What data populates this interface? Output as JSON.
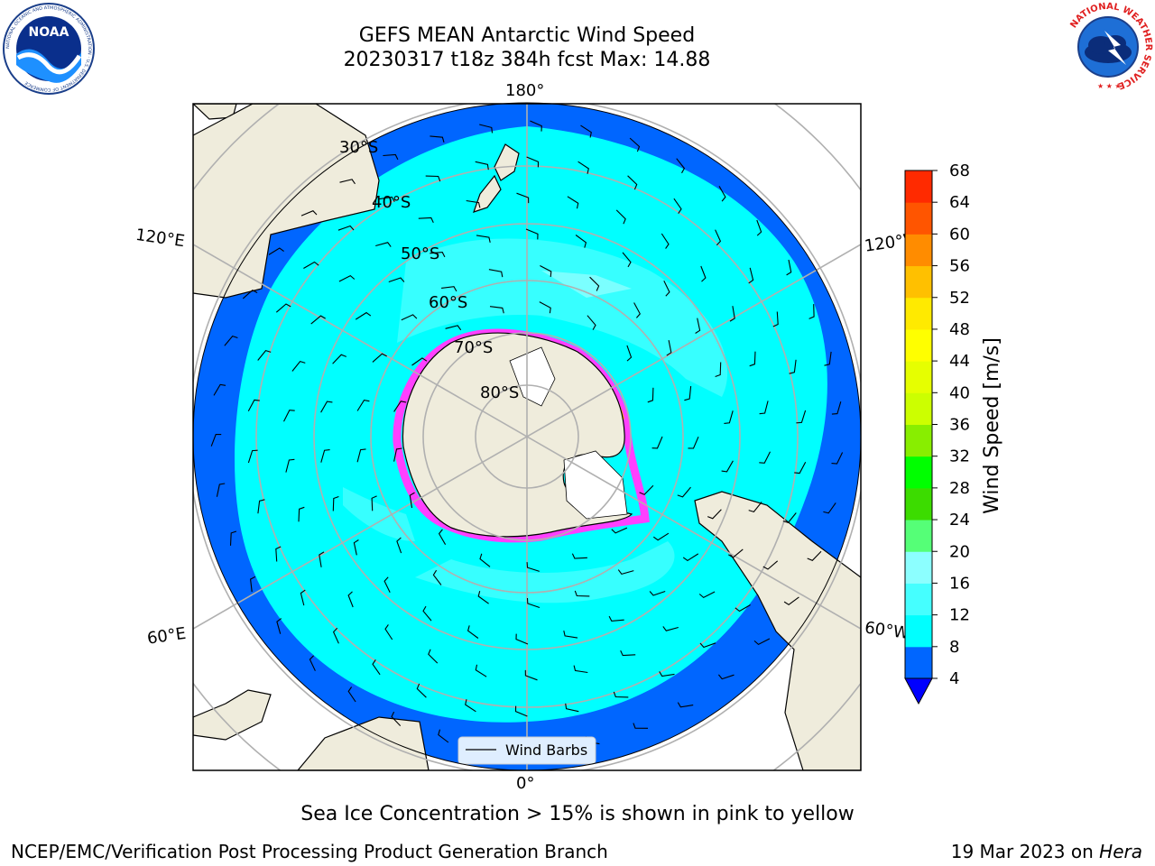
{
  "header": {
    "title": "GEFS MEAN Antarctic Wind Speed",
    "subtitle": "20230317 t18z 384h fcst   Max: 14.88"
  },
  "logos": {
    "left": {
      "name": "noaa-logo",
      "text": "NOAA",
      "ring": "NATIONAL OCEANIC AND ATMOSPHERIC ADMINISTRATION · U.S. DEPARTMENT OF COMMERCE"
    },
    "right": {
      "name": "nws-logo",
      "ring": "NATIONAL WEATHER SERVICE"
    }
  },
  "map": {
    "projection": "south-polar-stereographic",
    "longitude_labels": {
      "top": "180°",
      "bottom": "0°",
      "upper_left": "120°E",
      "lower_left": "60°E",
      "upper_right": "120°W",
      "lower_right": "60°W"
    },
    "latitude_labels": [
      "30°S",
      "40°S",
      "50°S",
      "60°S",
      "70°S",
      "80°S"
    ],
    "legend_label": "Wind Barbs",
    "land_color": "#efecdc",
    "ice_color": "#ff40ff"
  },
  "colorbar": {
    "label": "Wind Speed [m/s]",
    "ticks": [
      "4",
      "8",
      "12",
      "16",
      "20",
      "24",
      "28",
      "32",
      "36",
      "40",
      "44",
      "48",
      "52",
      "56",
      "60",
      "64",
      "68"
    ],
    "colors": [
      "#0066ff",
      "#00ffff",
      "#45ffff",
      "#8cffff",
      "#55ff77",
      "#3cdc00",
      "#00ff00",
      "#88ee00",
      "#ccff00",
      "#e6ff00",
      "#ffff00",
      "#ffea00",
      "#ffc000",
      "#ff8c00",
      "#ff5500",
      "#ff2a00"
    ],
    "under_color": "#0000ff"
  },
  "footer": {
    "caption": "Sea Ice Concentration > 15% is shown in pink to yellow",
    "credit": "NCEP/EMC/Verification Post Processing Product Generation Branch",
    "date": "19 Mar 2023 on ",
    "machine": "Hera"
  }
}
